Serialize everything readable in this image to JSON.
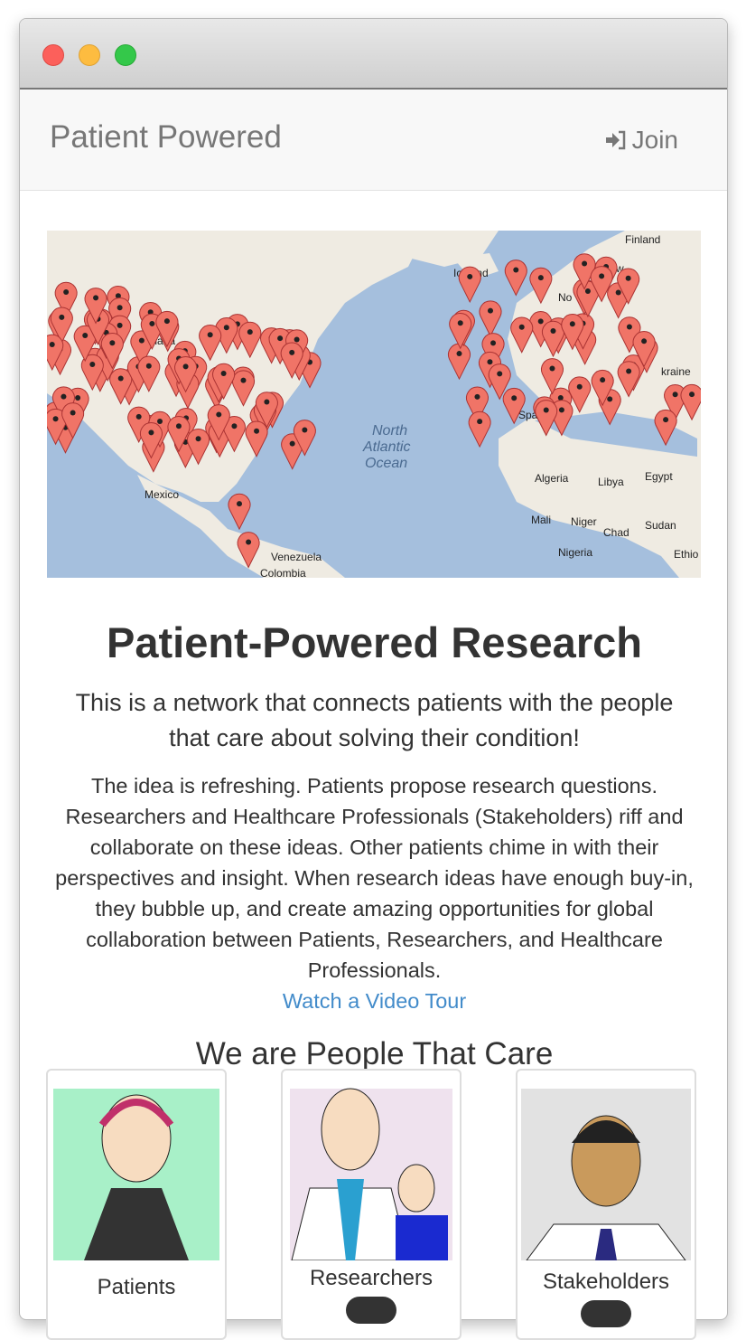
{
  "window": {
    "controls": {
      "close": "#ff5f57",
      "minimize": "#febc2e",
      "zoom": "#28c840"
    }
  },
  "navbar": {
    "brand": "Patient Powered",
    "join_label": "Join",
    "join_icon": "sign-in-icon"
  },
  "map": {
    "labels": [
      "Finland",
      "Iceland",
      "Canada",
      "Mexico",
      "North",
      "Atlantic",
      "Ocean",
      "Algeria",
      "Libya",
      "Egypt",
      "Mali",
      "Niger",
      "Chad",
      "Sudan",
      "Nigeria",
      "Venezuela",
      "Colombia",
      "Ethio",
      "kraine",
      "Spa",
      "Sw",
      "No"
    ],
    "marker_color": "#f07467",
    "water_color": "#a5bfdd",
    "land_color": "#efebe2"
  },
  "hero": {
    "title": "Patient-Powered Research",
    "lead": "This is a network that connects patients with the people that care about solving their condition!",
    "body": "The idea is refreshing. Patients propose research questions. Researchers and Healthcare Professionals (Stakeholders) riff and collaborate on these ideas. Other patients chime in with their perspectives and insight. When research ideas have enough buy-in, they bubble up, and create amazing opportunities for global collaboration between Patients, Researchers, and Healthcare Professionals.",
    "video_link": "Watch a Video Tour"
  },
  "people": {
    "heading": "We are People That Care",
    "cards": [
      {
        "label": "Patients"
      },
      {
        "label": "Researchers"
      },
      {
        "label": "Stakeholders"
      }
    ]
  }
}
